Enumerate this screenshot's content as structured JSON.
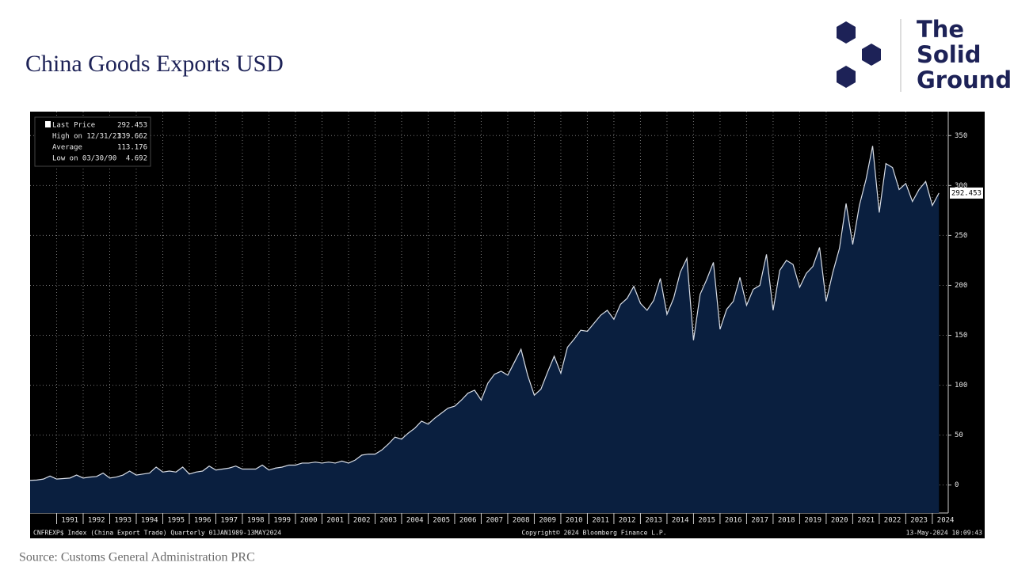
{
  "title": "China Goods Exports USD",
  "logo": [
    "The",
    "Solid",
    "Ground"
  ],
  "source": "Source: Customs General Administration PRC",
  "chart_data": {
    "type": "area",
    "color": "#0a1f3f",
    "line_color": "#d8dde6",
    "grid": true,
    "stats": [
      {
        "label": "Last Price",
        "value": 292.453
      },
      {
        "label": "High on 12/31/21",
        "value": 339.662
      },
      {
        "label": "Average",
        "value": 113.176
      },
      {
        "label": "Low on 03/30/90",
        "value": 4.692
      }
    ],
    "last_label": "292.453",
    "footer_left": "CNFREXP$ Index (China Export Trade)  Quarterly 01JAN1989-13MAY2024",
    "footer_center": "Copyright© 2024 Bloomberg Finance L.P.",
    "footer_right": "13-May-2024 10:09:43",
    "xlim": [
      1990.0,
      2024.6
    ],
    "xticks": [
      {
        "value": 1991.5,
        "label": "1991"
      },
      {
        "value": 1992.5,
        "label": "1992"
      },
      {
        "value": 1993.5,
        "label": "1993"
      },
      {
        "value": 1994.5,
        "label": "1994"
      },
      {
        "value": 1995.5,
        "label": "1995"
      },
      {
        "value": 1996.5,
        "label": "1996"
      },
      {
        "value": 1997.5,
        "label": "1997"
      },
      {
        "value": 1998.5,
        "label": "1998"
      },
      {
        "value": 1999.5,
        "label": "1999"
      },
      {
        "value": 2000.5,
        "label": "2000"
      },
      {
        "value": 2001.5,
        "label": "2001"
      },
      {
        "value": 2002.5,
        "label": "2002"
      },
      {
        "value": 2003.5,
        "label": "2003"
      },
      {
        "value": 2004.5,
        "label": "2004"
      },
      {
        "value": 2005.5,
        "label": "2005"
      },
      {
        "value": 2006.5,
        "label": "2006"
      },
      {
        "value": 2007.5,
        "label": "2007"
      },
      {
        "value": 2008.5,
        "label": "2008"
      },
      {
        "value": 2009.5,
        "label": "2009"
      },
      {
        "value": 2010.5,
        "label": "2010"
      },
      {
        "value": 2011.5,
        "label": "2011"
      },
      {
        "value": 2012.5,
        "label": "2012"
      },
      {
        "value": 2013.5,
        "label": "2013"
      },
      {
        "value": 2014.5,
        "label": "2014"
      },
      {
        "value": 2015.5,
        "label": "2015"
      },
      {
        "value": 2016.5,
        "label": "2016"
      },
      {
        "value": 2017.5,
        "label": "2017"
      },
      {
        "value": 2018.5,
        "label": "2018"
      },
      {
        "value": 2019.5,
        "label": "2019"
      },
      {
        "value": 2020.5,
        "label": "2020"
      },
      {
        "value": 2021.5,
        "label": "2021"
      },
      {
        "value": 2022.5,
        "label": "2022"
      },
      {
        "value": 2023.5,
        "label": "2023"
      },
      {
        "value": 2024.5,
        "label": "2024"
      }
    ],
    "ylim": [
      -28,
      374
    ],
    "yticks": [
      0,
      50,
      100,
      150,
      200,
      250,
      300,
      350
    ],
    "x": [
      1990,
      1990.25,
      1990.5,
      1990.75,
      1991,
      1991.25,
      1991.5,
      1991.75,
      1992,
      1992.25,
      1992.5,
      1992.75,
      1993,
      1993.25,
      1993.5,
      1993.75,
      1994,
      1994.25,
      1994.5,
      1994.75,
      1995,
      1995.25,
      1995.5,
      1995.75,
      1996,
      1996.25,
      1996.5,
      1996.75,
      1997,
      1997.25,
      1997.5,
      1997.75,
      1998,
      1998.25,
      1998.5,
      1998.75,
      1999,
      1999.25,
      1999.5,
      1999.75,
      2000,
      2000.25,
      2000.5,
      2000.75,
      2001,
      2001.25,
      2001.5,
      2001.75,
      2002,
      2002.25,
      2002.5,
      2002.75,
      2003,
      2003.25,
      2003.5,
      2003.75,
      2004,
      2004.25,
      2004.5,
      2004.75,
      2005,
      2005.25,
      2005.5,
      2005.75,
      2006,
      2006.25,
      2006.5,
      2006.75,
      2007,
      2007.25,
      2007.5,
      2007.75,
      2008,
      2008.25,
      2008.5,
      2008.75,
      2009,
      2009.25,
      2009.5,
      2009.75,
      2010,
      2010.25,
      2010.5,
      2010.75,
      2011,
      2011.25,
      2011.5,
      2011.75,
      2012,
      2012.25,
      2012.5,
      2012.75,
      2013,
      2013.25,
      2013.5,
      2013.75,
      2014,
      2014.25,
      2014.5,
      2014.75,
      2015,
      2015.25,
      2015.5,
      2015.75,
      2016,
      2016.25,
      2016.5,
      2016.75,
      2017,
      2017.25,
      2017.5,
      2017.75,
      2018,
      2018.25,
      2018.5,
      2018.75,
      2019,
      2019.25,
      2019.5,
      2019.75,
      2020,
      2020.25,
      2020.5,
      2020.75,
      2021,
      2021.25,
      2021.5,
      2021.75,
      2022,
      2022.25,
      2022.5,
      2022.75,
      2023,
      2023.25,
      2023.5,
      2023.75,
      2024,
      2024.25
    ],
    "values": [
      4.692,
      5,
      6,
      9,
      6,
      6.5,
      7,
      10,
      7,
      8,
      8.5,
      12,
      7,
      8,
      10,
      14,
      10,
      11,
      12,
      18,
      13,
      14,
      13,
      18,
      11,
      13,
      14,
      19,
      15,
      16,
      17,
      19,
      16,
      16,
      16,
      20,
      15,
      17,
      18,
      20,
      20,
      22,
      22,
      23,
      22,
      23,
      22,
      24,
      22,
      25,
      30,
      31,
      31,
      35,
      41,
      48,
      46,
      52,
      57,
      64,
      61,
      67,
      72,
      77,
      79,
      85,
      92,
      95,
      85,
      102,
      111,
      114,
      110,
      123,
      136,
      110,
      90,
      96,
      113,
      129,
      112,
      138,
      146,
      155,
      154,
      162,
      170,
      175,
      166,
      181,
      187,
      199,
      182,
      175,
      185,
      207,
      171,
      187,
      213,
      227,
      145,
      191,
      206,
      223,
      156,
      176,
      184,
      208,
      180,
      196,
      200,
      231,
      175,
      215,
      225,
      221,
      198,
      212,
      219,
      238,
      184,
      213,
      237,
      282,
      241,
      280,
      306,
      339.662,
      273,
      322,
      318,
      296,
      302,
      284,
      296,
      304,
      280,
      292.453
    ]
  }
}
